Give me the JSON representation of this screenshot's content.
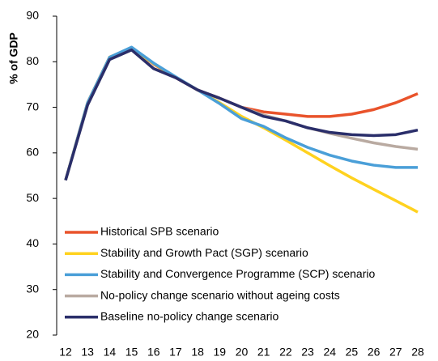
{
  "chart_data": {
    "type": "line",
    "y_label": "% of GDP",
    "categories": [
      "12",
      "13",
      "14",
      "15",
      "16",
      "17",
      "18",
      "19",
      "20",
      "21",
      "22",
      "23",
      "24",
      "25",
      "26",
      "27",
      "28"
    ],
    "series": [
      {
        "name": "Historical SPB scenario",
        "color": "#e9532b",
        "values": [
          54,
          71,
          81,
          83,
          79.5,
          76.5,
          73.8,
          72,
          70,
          69,
          68.5,
          68,
          68,
          68.5,
          69.5,
          71,
          73
        ]
      },
      {
        "name": "Stability and Growth Pact (SGP) scenario",
        "color": "#ffd21f",
        "values": [
          54,
          71,
          81,
          83,
          79.6,
          76.6,
          73.8,
          71,
          68,
          65.5,
          62.8,
          60,
          57.2,
          54.5,
          52,
          49.5,
          47
        ]
      },
      {
        "name": "Stability and Convergence Programme (SCP) scenario",
        "color": "#4a9fd8",
        "values": [
          54,
          71,
          81,
          83.2,
          79.7,
          76.7,
          73.8,
          70.8,
          67.5,
          65.8,
          63.3,
          61.2,
          59.5,
          58.2,
          57.3,
          56.8,
          56.8
        ]
      },
      {
        "name": "No-policy change scenario without ageing costs",
        "color": "#b9aaa1",
        "values": [
          54,
          70.5,
          80.5,
          82.6,
          78.5,
          76.5,
          73.8,
          72,
          70,
          68.3,
          67,
          65.5,
          64.3,
          63.2,
          62.2,
          61.4,
          60.8
        ]
      },
      {
        "name": "Baseline no-policy change scenario",
        "color": "#2a2e6a",
        "values": [
          54,
          70.5,
          80.5,
          82.6,
          78.5,
          76.5,
          73.8,
          72,
          70,
          68,
          67,
          65.5,
          64.5,
          64,
          63.8,
          64,
          65
        ]
      }
    ],
    "ylim": [
      20,
      90
    ],
    "yticks": [
      20,
      30,
      40,
      50,
      60,
      70,
      80,
      90
    ],
    "grid": false,
    "legend": "lower left"
  }
}
